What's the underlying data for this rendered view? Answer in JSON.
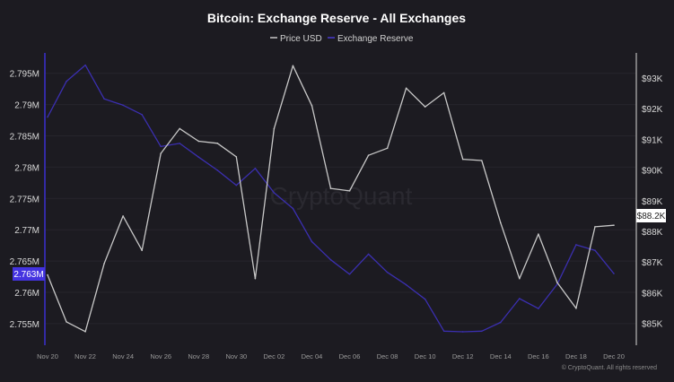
{
  "chart_data": {
    "type": "line",
    "title": "Bitcoin: Exchange Reserve - All Exchanges",
    "legend_position": "top-center",
    "grid": true,
    "watermark": "CryptoQuant",
    "copyright": "© CryptoQuant. All rights reserved",
    "x": [
      "Nov 20",
      "Nov 21",
      "Nov 22",
      "Nov 23",
      "Nov 24",
      "Nov 25",
      "Nov 26",
      "Nov 27",
      "Nov 28",
      "Nov 29",
      "Nov 30",
      "Dec 01",
      "Dec 02",
      "Dec 03",
      "Dec 04",
      "Dec 05",
      "Dec 06",
      "Dec 07",
      "Dec 08",
      "Dec 09",
      "Dec 10",
      "Dec 11",
      "Dec 12",
      "Dec 13",
      "Dec 14",
      "Dec 15",
      "Dec 16",
      "Dec 17",
      "Dec 18",
      "Dec 19",
      "Dec 20"
    ],
    "x_tick_labels": [
      "Nov 20",
      "Nov 22",
      "Nov 24",
      "Nov 26",
      "Nov 28",
      "Nov 30",
      "Dec 02",
      "Dec 04",
      "Dec 06",
      "Dec 08",
      "Dec 10",
      "Dec 12",
      "Dec 14",
      "Dec 16",
      "Dec 18",
      "Dec 20"
    ],
    "left_axis": {
      "ylim": [
        2.7515,
        2.7985
      ],
      "ticks": [
        2.755,
        2.76,
        2.765,
        2.77,
        2.775,
        2.78,
        2.785,
        2.79,
        2.795
      ],
      "tick_labels": [
        "2.755M",
        "2.76M",
        "2.765M",
        "2.77M",
        "2.775M",
        "2.78M",
        "2.785M",
        "2.79M",
        "2.795M"
      ],
      "current_label": "2.763M"
    },
    "right_axis": {
      "ylim": [
        84.3,
        94.6
      ],
      "ticks": [
        85,
        86,
        87,
        88,
        89,
        90,
        91,
        92,
        93
      ],
      "tick_labels": [
        "$85K",
        "$86K",
        "$87K",
        "$88K",
        "$89K",
        "$90K",
        "$91K",
        "$92K",
        "$93K"
      ],
      "current_label": "$88.2K"
    },
    "series": [
      {
        "name": "Price USD",
        "axis": "right",
        "unit": "K USD",
        "color": "#c8c8c8",
        "values": [
          86.58,
          85.05,
          84.73,
          86.95,
          88.5,
          87.38,
          90.54,
          91.35,
          90.94,
          90.87,
          90.43,
          86.46,
          91.35,
          93.4,
          92.1,
          89.4,
          89.32,
          90.48,
          90.71,
          92.67,
          92.06,
          92.52,
          90.35,
          90.31,
          88.28,
          86.46,
          87.91,
          86.33,
          85.49,
          88.15,
          88.2
        ]
      },
      {
        "name": "Exchange Reserve",
        "axis": "left",
        "unit": "M BTC",
        "color": "#3b2fb0",
        "values": [
          2.788,
          2.7937,
          2.7963,
          2.7909,
          2.7899,
          2.7884,
          2.7833,
          2.7838,
          2.7816,
          2.7795,
          2.7771,
          2.7798,
          2.7759,
          2.7734,
          2.7681,
          2.7652,
          2.7629,
          2.7661,
          2.7632,
          2.7612,
          2.7589,
          2.7538,
          2.7537,
          2.7538,
          2.7552,
          2.759,
          2.7574,
          2.7613,
          2.7676,
          2.7667,
          2.763
        ]
      }
    ]
  }
}
